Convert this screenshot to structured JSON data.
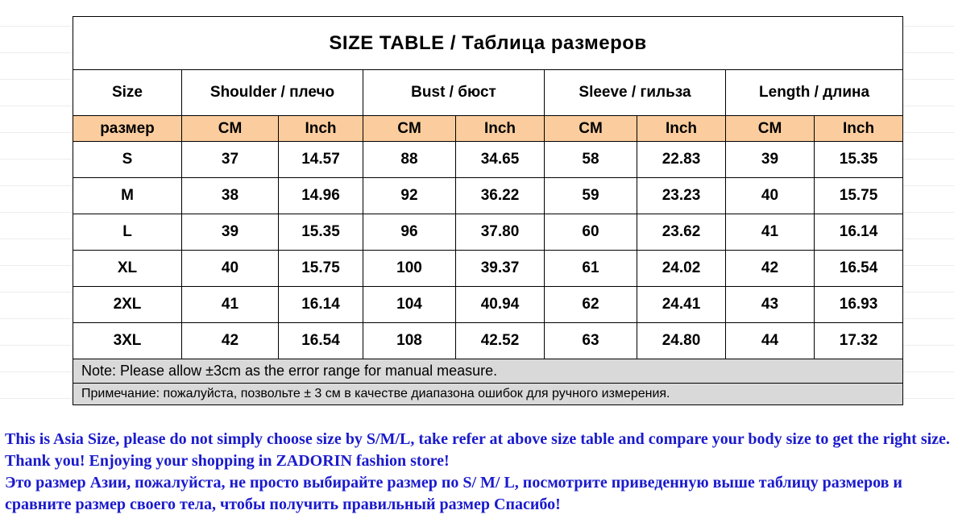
{
  "size_table": {
    "title": "SIZE TABLE  / Таблица размеров",
    "columns": [
      {
        "label": "Size"
      },
      {
        "label": "Shoulder / плечо"
      },
      {
        "label": "Bust / бюст"
      },
      {
        "label": "Sleeve / гильза"
      },
      {
        "label": "Length / длина"
      }
    ],
    "subheader": {
      "size_label": "размер",
      "unit_labels": [
        "CM",
        "Inch"
      ]
    },
    "rows": [
      {
        "size": "S",
        "values": [
          "37",
          "14.57",
          "88",
          "34.65",
          "58",
          "22.83",
          "39",
          "15.35"
        ]
      },
      {
        "size": "M",
        "values": [
          "38",
          "14.96",
          "92",
          "36.22",
          "59",
          "23.23",
          "40",
          "15.75"
        ]
      },
      {
        "size": "L",
        "values": [
          "39",
          "15.35",
          "96",
          "37.80",
          "60",
          "23.62",
          "41",
          "16.14"
        ]
      },
      {
        "size": "XL",
        "values": [
          "40",
          "15.75",
          "100",
          "39.37",
          "61",
          "24.02",
          "42",
          "16.54"
        ]
      },
      {
        "size": "2XL",
        "values": [
          "41",
          "16.14",
          "104",
          "40.94",
          "62",
          "24.41",
          "43",
          "16.93"
        ]
      },
      {
        "size": "3XL",
        "values": [
          "42",
          "16.54",
          "108",
          "42.52",
          "63",
          "24.80",
          "44",
          "17.32"
        ]
      }
    ],
    "notes": [
      "Note: Please allow ±3cm as the error range for manual measure.",
      "Примечание: пожалуйста, позвольте ± 3 см в качестве диапазона ошибок для ручного измерения."
    ],
    "colors": {
      "header_bg": "#FBCD9E",
      "note_bg": "#D9D9D9",
      "border": "#000000"
    }
  },
  "footer": {
    "english": "This is Asia Size, please do not simply choose size by S/M/L, take refer at above size table and compare your body size to get the right size. Thank you!  Enjoying your shopping in ZADORIN fashion store!",
    "russian": "Это размер Азии, пожалуйста, не просто выбирайте размер по S/ M/ L, посмотрите приведенную выше таблицу размеров и сравните размер своего тела, чтобы получить правильный размер Спасибо!",
    "text_color": "#1A1ACD"
  }
}
